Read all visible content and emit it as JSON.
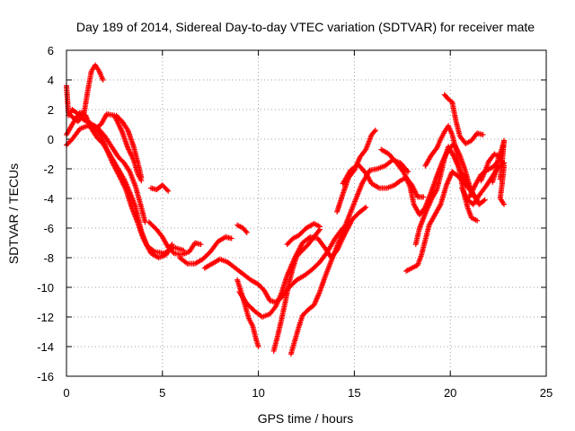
{
  "chart_data": {
    "type": "scatter",
    "title": "Day 189 of 2014, Sidereal Day-to-day VTEC variation (SDTVAR) for receiver mate",
    "xlabel": "GPS time / hours",
    "ylabel": "SDTVAR / TECUs",
    "xlim": [
      0,
      25
    ],
    "ylim": [
      -16,
      6
    ],
    "xticks": [
      "0",
      "5",
      "10",
      "15",
      "20",
      "25"
    ],
    "yticks": [
      "6",
      "4",
      "2",
      "0",
      "-2",
      "-4",
      "-6",
      "-8",
      "-10",
      "-12",
      "-14",
      "-16"
    ],
    "grid": true,
    "marker": "+",
    "color": "#ff0000",
    "series": [
      {
        "points": [
          [
            0.0,
            3.6
          ],
          [
            0.1,
            1.8
          ],
          [
            0.3,
            1.5
          ],
          [
            0.6,
            1.2
          ],
          [
            0.9,
            1.6
          ],
          [
            1.1,
            3.2
          ],
          [
            1.3,
            4.6
          ],
          [
            1.5,
            5.0
          ],
          [
            1.7,
            4.6
          ],
          [
            1.9,
            4.0
          ]
        ]
      },
      {
        "points": [
          [
            0.0,
            0.3
          ],
          [
            0.3,
            1.0
          ],
          [
            0.7,
            1.8
          ],
          [
            1.0,
            1.6
          ],
          [
            1.3,
            0.7
          ],
          [
            1.6,
            0.1
          ],
          [
            1.9,
            -0.3
          ],
          [
            2.2,
            -0.9
          ],
          [
            2.6,
            -1.8
          ],
          [
            3.0,
            -2.7
          ],
          [
            3.3,
            -3.6
          ],
          [
            3.6,
            -4.6
          ],
          [
            3.9,
            -6.2
          ],
          [
            4.2,
            -7.2
          ],
          [
            4.6,
            -7.6
          ],
          [
            5.1,
            -7.7
          ],
          [
            5.6,
            -7.3
          ],
          [
            6.1,
            -7.5
          ]
        ]
      },
      {
        "points": [
          [
            0.0,
            -0.4
          ],
          [
            0.3,
            0.0
          ],
          [
            0.7,
            0.7
          ],
          [
            1.1,
            0.9
          ],
          [
            1.5,
            0.7
          ],
          [
            1.8,
            1.0
          ],
          [
            2.1,
            1.7
          ],
          [
            2.5,
            1.6
          ],
          [
            2.9,
            0.5
          ],
          [
            3.2,
            -0.6
          ],
          [
            3.5,
            -1.4
          ],
          [
            3.7,
            -2.3
          ],
          [
            3.9,
            -2.8
          ]
        ]
      },
      {
        "points": [
          [
            0.1,
            1.6
          ],
          [
            0.3,
            2.0
          ],
          [
            0.6,
            1.7
          ],
          [
            0.9,
            1.3
          ],
          [
            1.2,
            1.1
          ],
          [
            1.6,
            0.8
          ],
          [
            2.0,
            0.2
          ],
          [
            2.4,
            -0.6
          ],
          [
            2.7,
            -1.2
          ],
          [
            3.0,
            -1.6
          ],
          [
            3.3,
            -2.2
          ],
          [
            3.6,
            -3.2
          ],
          [
            3.9,
            -4.6
          ],
          [
            4.1,
            -5.6
          ]
        ]
      },
      {
        "points": [
          [
            1.5,
            0.7
          ],
          [
            1.8,
            0.2
          ],
          [
            2.1,
            -0.7
          ],
          [
            2.4,
            -1.6
          ],
          [
            2.8,
            -2.6
          ],
          [
            3.1,
            -3.4
          ],
          [
            3.4,
            -4.6
          ],
          [
            3.7,
            -5.6
          ],
          [
            4.0,
            -6.7
          ],
          [
            4.4,
            -7.7
          ],
          [
            4.8,
            -8.0
          ],
          [
            5.2,
            -7.8
          ],
          [
            5.5,
            -7.1
          ]
        ]
      },
      {
        "points": [
          [
            2.6,
            1.6
          ],
          [
            2.9,
            1.2
          ],
          [
            3.2,
            0.6
          ],
          [
            3.5,
            -0.5
          ],
          [
            3.7,
            -1.5
          ],
          [
            3.9,
            -2.6
          ]
        ]
      },
      {
        "points": [
          [
            4.4,
            -3.3
          ],
          [
            4.7,
            -3.4
          ],
          [
            5.0,
            -3.1
          ],
          [
            5.3,
            -3.5
          ]
        ]
      },
      {
        "points": [
          [
            4.3,
            -5.6
          ],
          [
            4.7,
            -6.1
          ],
          [
            5.0,
            -6.6
          ],
          [
            5.3,
            -7.3
          ],
          [
            5.6,
            -7.7
          ],
          [
            6.0,
            -7.8
          ],
          [
            6.4,
            -7.6
          ],
          [
            6.7,
            -7.0
          ],
          [
            7.0,
            -7.1
          ]
        ]
      },
      {
        "points": [
          [
            5.9,
            -8.0
          ],
          [
            6.3,
            -8.4
          ],
          [
            6.7,
            -8.4
          ],
          [
            7.1,
            -8.1
          ],
          [
            7.5,
            -7.6
          ],
          [
            7.9,
            -6.9
          ],
          [
            8.3,
            -6.6
          ],
          [
            8.6,
            -6.7
          ]
        ]
      },
      {
        "points": [
          [
            7.2,
            -8.7
          ],
          [
            7.6,
            -8.4
          ],
          [
            8.0,
            -8.1
          ],
          [
            8.4,
            -8.3
          ],
          [
            8.8,
            -8.7
          ],
          [
            9.2,
            -9.1
          ],
          [
            9.6,
            -9.5
          ],
          [
            10.0,
            -9.8
          ],
          [
            10.3,
            -10.2
          ],
          [
            10.6,
            -10.9
          ],
          [
            10.9,
            -11.0
          ],
          [
            11.2,
            -10.7
          ],
          [
            11.6,
            -10.0
          ],
          [
            12.0,
            -9.5
          ],
          [
            12.4,
            -9.2
          ],
          [
            12.8,
            -8.8
          ],
          [
            13.2,
            -8.3
          ],
          [
            13.6,
            -7.6
          ],
          [
            14.0,
            -6.7
          ],
          [
            14.4,
            -6.0
          ]
        ]
      },
      {
        "points": [
          [
            8.9,
            -5.8
          ],
          [
            9.2,
            -6.0
          ],
          [
            9.4,
            -6.3
          ]
        ]
      },
      {
        "points": [
          [
            8.9,
            -9.5
          ],
          [
            9.1,
            -10.3
          ],
          [
            9.3,
            -11.2
          ],
          [
            9.5,
            -12.1
          ],
          [
            9.7,
            -12.6
          ],
          [
            9.9,
            -13.6
          ],
          [
            10.0,
            -14.0
          ]
        ]
      },
      {
        "points": [
          [
            9.0,
            -10.3
          ],
          [
            9.4,
            -11.1
          ],
          [
            9.8,
            -11.6
          ],
          [
            10.2,
            -12.0
          ],
          [
            10.6,
            -11.8
          ],
          [
            10.9,
            -11.3
          ],
          [
            11.2,
            -10.4
          ],
          [
            11.5,
            -9.2
          ],
          [
            11.9,
            -8.0
          ],
          [
            12.3,
            -7.0
          ],
          [
            12.7,
            -6.6
          ],
          [
            13.1,
            -6.7
          ],
          [
            13.5,
            -7.4
          ],
          [
            13.8,
            -8.0
          ],
          [
            14.1,
            -7.5
          ],
          [
            14.5,
            -6.4
          ],
          [
            14.9,
            -5.4
          ],
          [
            15.3,
            -4.9
          ],
          [
            15.6,
            -4.6
          ]
        ]
      },
      {
        "points": [
          [
            10.8,
            -14.3
          ],
          [
            11.0,
            -13.3
          ],
          [
            11.2,
            -12.2
          ],
          [
            11.4,
            -11.0
          ],
          [
            11.6,
            -9.7
          ],
          [
            11.8,
            -8.7
          ],
          [
            12.0,
            -7.9
          ],
          [
            12.3,
            -7.5
          ],
          [
            12.6,
            -7.1
          ],
          [
            12.9,
            -6.6
          ],
          [
            13.2,
            -6.1
          ]
        ]
      },
      {
        "points": [
          [
            11.5,
            -7.1
          ],
          [
            11.8,
            -6.7
          ],
          [
            12.1,
            -6.5
          ],
          [
            12.5,
            -6.0
          ],
          [
            12.9,
            -5.7
          ],
          [
            13.2,
            -5.9
          ]
        ]
      },
      {
        "points": [
          [
            11.7,
            -14.5
          ],
          [
            11.9,
            -13.6
          ],
          [
            12.1,
            -12.7
          ],
          [
            12.3,
            -11.9
          ],
          [
            12.6,
            -11.5
          ],
          [
            12.9,
            -11.2
          ],
          [
            13.2,
            -10.3
          ],
          [
            13.5,
            -9.2
          ],
          [
            13.8,
            -8.2
          ],
          [
            14.2,
            -6.9
          ],
          [
            14.6,
            -5.6
          ],
          [
            15.0,
            -4.3
          ],
          [
            15.4,
            -3.0
          ],
          [
            15.8,
            -2.1
          ],
          [
            16.2,
            -2.0
          ],
          [
            16.6,
            -1.8
          ],
          [
            17.0,
            -1.4
          ],
          [
            17.4,
            -1.6
          ],
          [
            17.8,
            -2.2
          ]
        ]
      },
      {
        "points": [
          [
            14.1,
            -4.9
          ],
          [
            14.4,
            -3.7
          ],
          [
            14.7,
            -2.6
          ],
          [
            15.0,
            -2.1
          ],
          [
            15.3,
            -1.2
          ],
          [
            15.6,
            -0.7
          ],
          [
            15.9,
            0.3
          ],
          [
            16.1,
            0.6
          ]
        ]
      },
      {
        "points": [
          [
            14.4,
            -3.0
          ],
          [
            14.8,
            -2.1
          ],
          [
            15.2,
            -1.7
          ],
          [
            15.6,
            -2.3
          ],
          [
            15.9,
            -3.0
          ],
          [
            16.3,
            -3.3
          ],
          [
            16.7,
            -3.3
          ],
          [
            17.1,
            -3.1
          ],
          [
            17.4,
            -2.8
          ],
          [
            17.7,
            -2.6
          ],
          [
            18.0,
            -3.1
          ],
          [
            18.3,
            -3.9
          ],
          [
            18.6,
            -3.9
          ]
        ]
      },
      {
        "points": [
          [
            16.4,
            -0.7
          ],
          [
            16.8,
            -1.0
          ],
          [
            17.2,
            -1.6
          ],
          [
            17.6,
            -2.3
          ],
          [
            17.9,
            -3.2
          ],
          [
            18.1,
            -4.4
          ],
          [
            18.4,
            -5.1
          ],
          [
            18.7,
            -4.6
          ],
          [
            19.0,
            -3.6
          ],
          [
            19.3,
            -2.5
          ],
          [
            19.6,
            -1.5
          ],
          [
            19.9,
            -0.7
          ],
          [
            20.2,
            -0.3
          ],
          [
            20.5,
            -1.1
          ],
          [
            20.8,
            -2.2
          ],
          [
            21.1,
            -3.6
          ],
          [
            21.4,
            -4.1
          ]
        ]
      },
      {
        "points": [
          [
            17.7,
            -8.9
          ],
          [
            18.0,
            -8.7
          ],
          [
            18.3,
            -8.5
          ],
          [
            18.5,
            -7.8
          ],
          [
            18.7,
            -6.8
          ],
          [
            18.9,
            -5.8
          ],
          [
            19.2,
            -5.1
          ],
          [
            19.5,
            -4.4
          ],
          [
            19.8,
            -3.1
          ],
          [
            20.1,
            -2.2
          ],
          [
            20.4,
            -2.5
          ],
          [
            20.7,
            -2.9
          ],
          [
            21.0,
            -3.4
          ],
          [
            21.3,
            -3.9
          ]
        ]
      },
      {
        "points": [
          [
            18.2,
            -7.1
          ],
          [
            18.4,
            -6.0
          ],
          [
            18.7,
            -5.0
          ],
          [
            19.0,
            -4.1
          ],
          [
            19.3,
            -3.4
          ],
          [
            19.5,
            -2.4
          ],
          [
            19.7,
            -1.3
          ],
          [
            19.9,
            -0.5
          ],
          [
            20.2,
            -1.2
          ],
          [
            20.5,
            -2.1
          ],
          [
            20.9,
            -3.0
          ],
          [
            21.2,
            -3.7
          ],
          [
            21.5,
            -4.4
          ],
          [
            21.8,
            -4.1
          ]
        ]
      },
      {
        "points": [
          [
            18.7,
            -1.8
          ],
          [
            19.0,
            -1.1
          ],
          [
            19.3,
            -0.6
          ],
          [
            19.5,
            0.0
          ],
          [
            19.7,
            0.5
          ],
          [
            19.9,
            0.9
          ],
          [
            20.1,
            0.3
          ],
          [
            20.3,
            -0.7
          ],
          [
            20.5,
            -2.3
          ],
          [
            20.7,
            -3.6
          ],
          [
            20.9,
            -4.6
          ],
          [
            21.1,
            -5.3
          ],
          [
            21.4,
            -5.5
          ]
        ]
      },
      {
        "points": [
          [
            19.7,
            3.0
          ],
          [
            19.9,
            2.7
          ],
          [
            20.1,
            2.5
          ],
          [
            20.3,
            1.2
          ],
          [
            20.5,
            0.2
          ],
          [
            20.8,
            -0.3
          ],
          [
            21.1,
            -0.1
          ],
          [
            21.4,
            0.4
          ],
          [
            21.7,
            0.3
          ]
        ]
      },
      {
        "points": [
          [
            20.6,
            -3.3
          ],
          [
            20.9,
            -4.1
          ],
          [
            21.2,
            -4.4
          ],
          [
            21.5,
            -3.8
          ],
          [
            21.9,
            -3.1
          ],
          [
            22.2,
            -2.5
          ],
          [
            22.5,
            -1.9
          ],
          [
            22.8,
            -1.6
          ]
        ]
      },
      {
        "points": [
          [
            21.0,
            -3.9
          ],
          [
            21.3,
            -3.1
          ],
          [
            21.6,
            -2.4
          ],
          [
            21.9,
            -2.1
          ],
          [
            22.2,
            -1.9
          ],
          [
            22.5,
            -1.5
          ],
          [
            22.7,
            -0.9
          ],
          [
            22.8,
            -0.2
          ]
        ]
      },
      {
        "points": [
          [
            21.6,
            -2.8
          ],
          [
            21.8,
            -2.2
          ],
          [
            22.0,
            -1.5
          ],
          [
            22.3,
            -1.0
          ],
          [
            22.6,
            -1.2
          ],
          [
            22.8,
            -1.8
          ],
          [
            22.7,
            -3.0
          ],
          [
            22.6,
            -4.0
          ],
          [
            22.8,
            -4.4
          ]
        ]
      },
      {
        "points": [
          [
            22.2,
            -2.9
          ],
          [
            22.4,
            -2.0
          ],
          [
            22.5,
            -1.3
          ],
          [
            22.7,
            -0.6
          ],
          [
            22.8,
            -0.1
          ],
          [
            22.7,
            -1.6
          ],
          [
            22.6,
            -2.7
          ]
        ]
      }
    ]
  }
}
